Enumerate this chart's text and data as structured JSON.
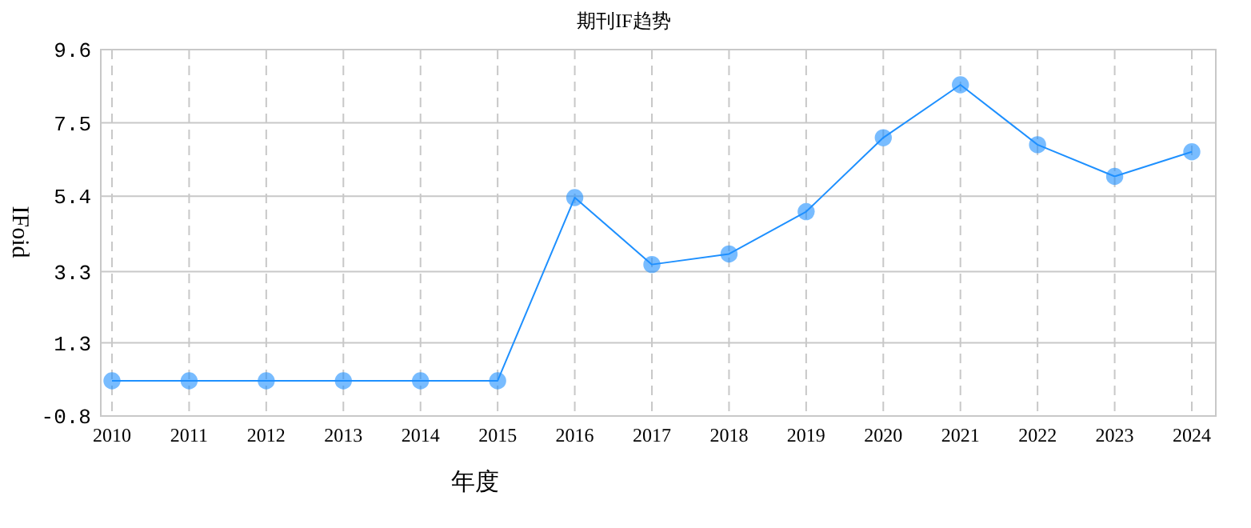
{
  "chart_data": {
    "type": "line",
    "title": "期刊IF趋势",
    "xlabel": "年度",
    "ylabel": "IFoid",
    "categories": [
      "2010",
      "2011",
      "2012",
      "2013",
      "2014",
      "2015",
      "2016",
      "2017",
      "2018",
      "2019",
      "2020",
      "2021",
      "2022",
      "2023",
      "2024"
    ],
    "series": [
      {
        "color": "#1e90ff",
        "values": [
          0.2,
          0.2,
          0.2,
          0.2,
          0.2,
          0.2,
          5.4,
          3.5,
          3.8,
          5.0,
          7.1,
          8.6,
          6.9,
          6.0,
          6.7
        ]
      }
    ],
    "ylim": [
      -0.8,
      9.6
    ],
    "yticks": [
      -0.8,
      {
        "value": 1.28,
        "label": "1.3"
      },
      3.3,
      {
        "value": 5.44,
        "label": "5.4"
      },
      {
        "value": 7.52,
        "label": "7.5"
      },
      9.6
    ],
    "grid": true,
    "marker": "circle",
    "line_style": "solid"
  }
}
